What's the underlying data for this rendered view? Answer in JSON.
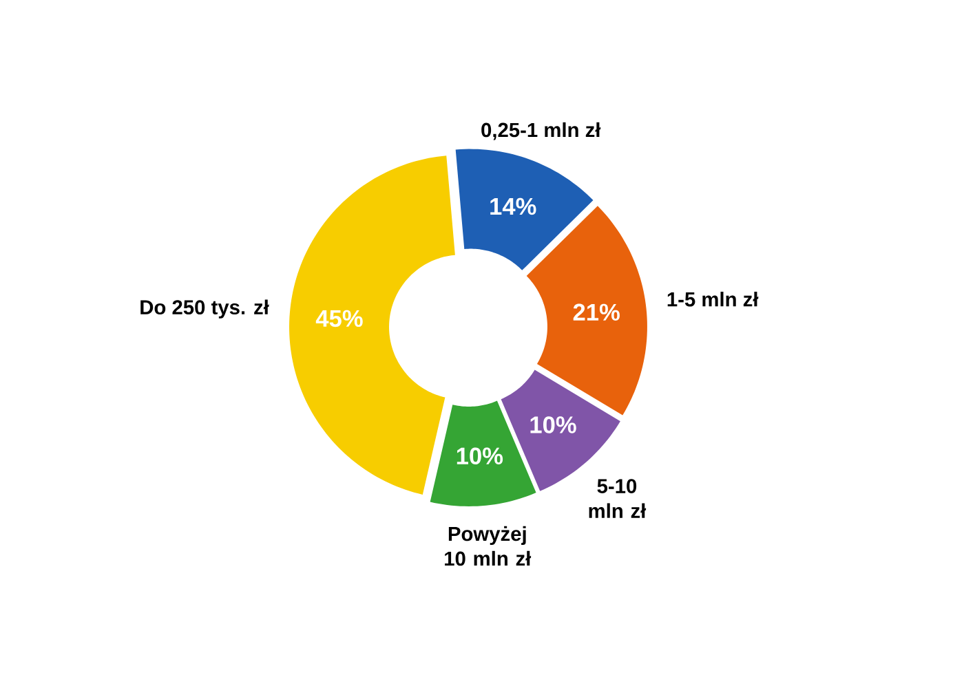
{
  "chart_data": {
    "type": "donut",
    "categories": [
      "0,25-1 mln zł",
      "1-5 mln zł",
      "5-10 mln zł",
      "Powyżej 10 mln zł",
      "Do 250 tys. zł"
    ],
    "values": [
      14,
      21,
      10,
      10,
      45
    ],
    "colors": [
      "#1e5fb4",
      "#e8620c",
      "#8055a8",
      "#35a534",
      "#f7cd00"
    ],
    "value_labels": [
      "14%",
      "21%",
      "10%",
      "10%",
      "45%"
    ]
  }
}
